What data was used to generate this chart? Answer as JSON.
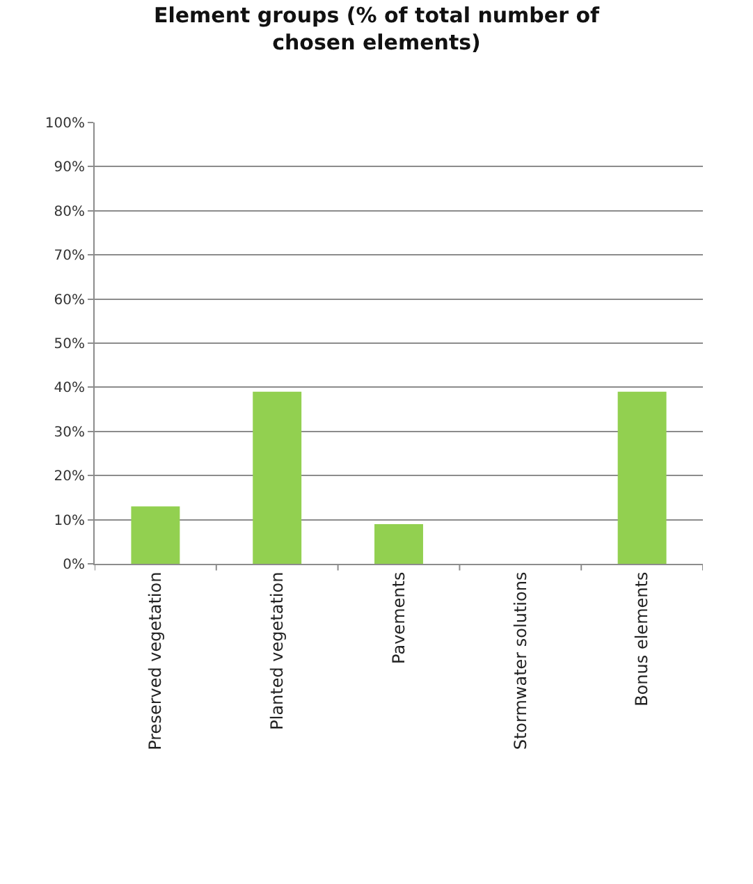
{
  "chart_data": {
    "type": "bar",
    "title": "Element groups (% of total number of chosen elements)",
    "categories": [
      "Preserved vegetation",
      "Planted vegetation",
      "Pavements",
      "Stormwater solutions",
      "Bonus elements"
    ],
    "values": [
      13,
      39,
      9,
      0,
      39
    ],
    "color": "#92d050",
    "ylim": [
      0,
      100
    ],
    "yticks": [
      {
        "value": 0,
        "label": "0%"
      },
      {
        "value": 10,
        "label": "10%"
      },
      {
        "value": 20,
        "label": "20%"
      },
      {
        "value": 30,
        "label": "30%"
      },
      {
        "value": 40,
        "label": "40%"
      },
      {
        "value": 50,
        "label": "50%"
      },
      {
        "value": 60,
        "label": "60%"
      },
      {
        "value": 70,
        "label": "70%"
      },
      {
        "value": 80,
        "label": "80%"
      },
      {
        "value": 90,
        "label": "90%"
      },
      {
        "value": 100,
        "label": "100%"
      }
    ],
    "grid": "y",
    "legend": false
  }
}
